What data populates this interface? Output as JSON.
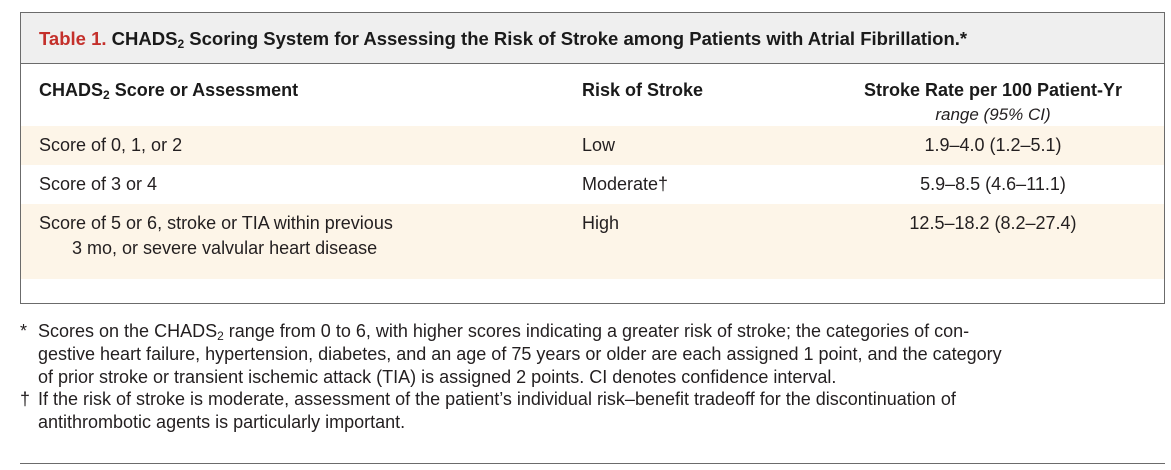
{
  "table": {
    "label": "Table 1.",
    "title_pre": "CHADS",
    "title_sub": "2",
    "title_post": " Scoring System for Assessing the Risk of Stroke among Patients with Atrial Fibrillation.*",
    "headers": {
      "col1_pre": "CHADS",
      "col1_sub": "2",
      "col1_post": " Score or Assessment",
      "col2": "Risk of Stroke",
      "col3": "Stroke Rate per 100 Patient-Yr"
    },
    "units_label": "range (95% CI)",
    "rows": [
      {
        "assessment": "Score of 0, 1, or 2",
        "assessment_cont": "",
        "risk": "Low",
        "rate": "1.9–4.0 (1.2–5.1)"
      },
      {
        "assessment": "Score of 3 or 4",
        "assessment_cont": "",
        "risk": "Moderate†",
        "rate": "5.9–8.5 (4.6–11.1)"
      },
      {
        "assessment": "Score of 5 or 6, stroke or TIA within previous",
        "assessment_cont": "3 mo, or severe valvular heart disease",
        "risk": "High",
        "rate": "12.5–18.2 (8.2–27.4)"
      }
    ]
  },
  "footnotes": {
    "star_mark": "*",
    "star_pre": "Scores on the CHADS",
    "star_sub": "2",
    "star_post": " range from 0 to 6, with higher scores indicating a greater risk of stroke; the categories of con-",
    "star_line2": "gestive heart failure, hypertension, diabetes, and an age of 75 years or older are each assigned 1 point, and the category",
    "star_line3": "of prior stroke or transient ischemic attack (TIA) is assigned 2 points. CI denotes confidence interval.",
    "dagger_mark": "†",
    "dagger_line1": "If the risk of stroke is moderate, assessment of the patient’s individual risk–benefit tradeoff for the discontinuation of",
    "dagger_line2": "antithrombotic agents is particularly important."
  }
}
